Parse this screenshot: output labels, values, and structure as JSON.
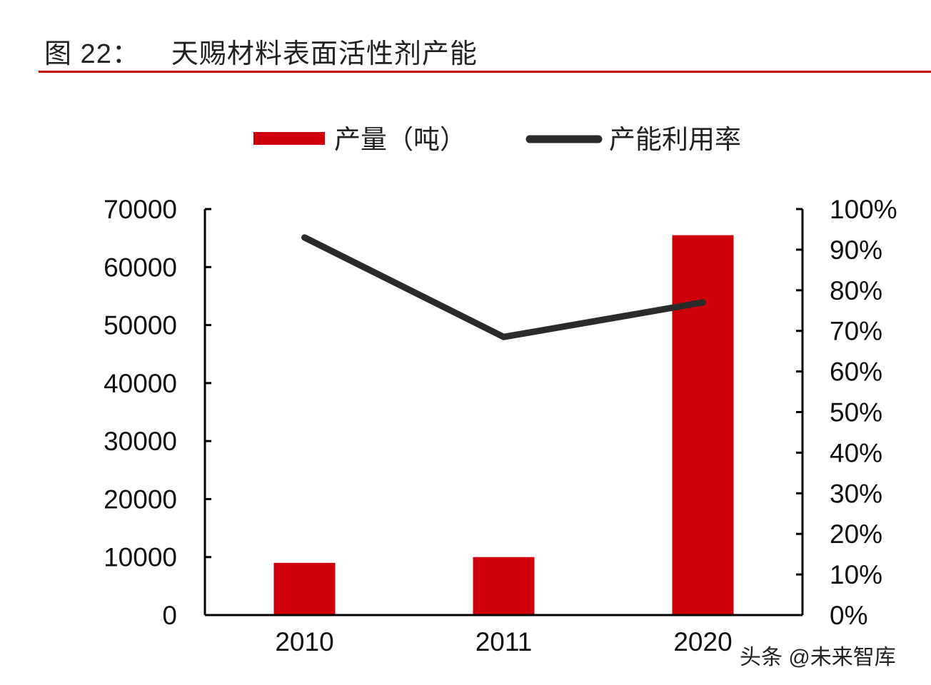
{
  "title": {
    "label": "图 22：",
    "text": "天赐材料表面活性剂产能"
  },
  "watermark": "头条 @未来智库",
  "colors": {
    "bar": "#d0000b",
    "line": "#2b2b2b",
    "rule": "#c00000"
  },
  "chart_data": {
    "type": "bar+line",
    "categories": [
      "2010",
      "2011",
      "2020"
    ],
    "series": [
      {
        "name": "产量（吨）",
        "type": "bar",
        "axis": "left",
        "values": [
          9000,
          10000,
          65500
        ]
      },
      {
        "name": "产能利用率",
        "type": "line",
        "axis": "right",
        "values": [
          0.93,
          0.685,
          0.77
        ]
      }
    ],
    "left_axis": {
      "ylim": [
        0,
        70000
      ],
      "ticks": [
        "0",
        "10000",
        "20000",
        "30000",
        "40000",
        "50000",
        "60000",
        "70000"
      ]
    },
    "right_axis": {
      "ylim": [
        0,
        1
      ],
      "ticks": [
        "0%",
        "10%",
        "20%",
        "30%",
        "40%",
        "50%",
        "60%",
        "70%",
        "80%",
        "90%",
        "100%"
      ]
    },
    "legend": "top",
    "grid": false
  }
}
